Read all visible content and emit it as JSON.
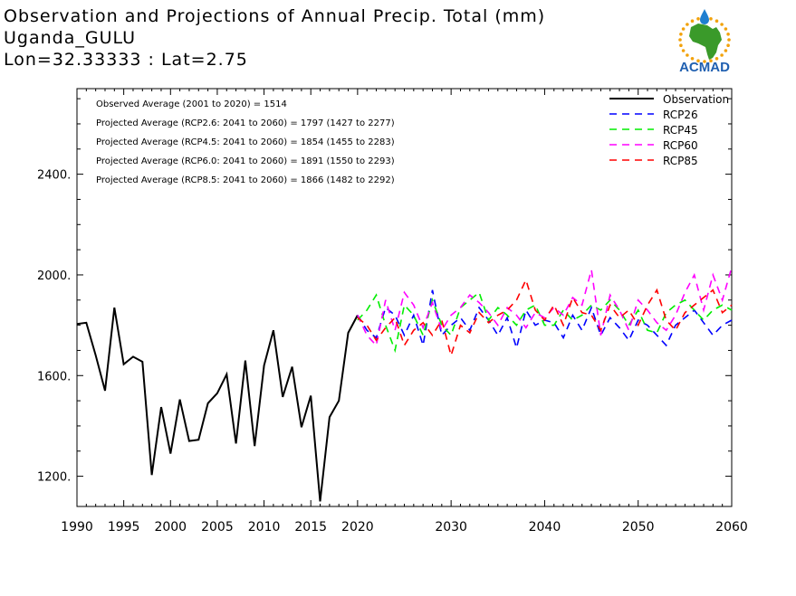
{
  "header": {
    "title": "Observation and Projections of Annual Precip. Total (mm)",
    "location": "Uganda_GULU",
    "coords": "Lon=32.33333 : Lat=2.75"
  },
  "logo": {
    "text": "ACMAD",
    "icon": "africa-sun-drop-icon",
    "colors": {
      "africa": "#3a9a2a",
      "sun": "#f2a20c",
      "drop": "#1f7fd0",
      "text": "#1f5fb0"
    }
  },
  "chart_data": {
    "type": "line",
    "xlim": [
      1990,
      2060
    ],
    "ylim": [
      1080,
      2740
    ],
    "x_ticks": [
      1990,
      1995,
      2000,
      2005,
      2010,
      2015,
      2020,
      2030,
      2040,
      2050,
      2060
    ],
    "y_ticks": [
      1200,
      1600,
      2000,
      2400
    ],
    "y_tick_labels": [
      "1200.",
      "1600.",
      "2000.",
      "2400."
    ],
    "annotations": [
      "Observed Average (2001 to 2020) = 1514",
      "Projected Average (RCP2.6: 2041 to 2060) = 1797 (1427 to 2277)",
      "Projected Average (RCP4.5: 2041 to 2060) = 1854 (1455 to 2283)",
      "Projected Average (RCP6.0: 2041 to 2060) = 1891 (1550 to 2293)",
      "Projected Average (RCP8.5: 2041 to 2060) = 1866 (1482 to 2292)"
    ],
    "legend_position": "top-right",
    "series": [
      {
        "name": "Observation",
        "color": "#000000",
        "dash": false,
        "x": [
          1990,
          1991,
          1992,
          1993,
          1994,
          1995,
          1996,
          1997,
          1998,
          1999,
          2000,
          2001,
          2002,
          2003,
          2004,
          2005,
          2006,
          2007,
          2008,
          2009,
          2010,
          2011,
          2012,
          2013,
          2014,
          2015,
          2016,
          2017,
          2018,
          2019,
          2020
        ],
        "y": [
          1805,
          1810,
          1680,
          1540,
          1870,
          1645,
          1675,
          1655,
          1205,
          1475,
          1290,
          1505,
          1340,
          1345,
          1490,
          1530,
          1605,
          1330,
          1660,
          1320,
          1640,
          1780,
          1515,
          1635,
          1395,
          1520,
          1100,
          1435,
          1500,
          1770,
          1840
        ]
      },
      {
        "name": "RCP26",
        "color": "#0000ff",
        "dash": true,
        "x": [
          2020,
          2021,
          2022,
          2023,
          2024,
          2025,
          2026,
          2027,
          2028,
          2029,
          2030,
          2031,
          2032,
          2033,
          2034,
          2035,
          2036,
          2037,
          2038,
          2039,
          2040,
          2041,
          2042,
          2043,
          2044,
          2045,
          2046,
          2047,
          2048,
          2049,
          2050,
          2051,
          2052,
          2053,
          2054,
          2055,
          2056,
          2057,
          2058,
          2059,
          2060
        ],
        "y": [
          1840,
          1780,
          1750,
          1870,
          1840,
          1760,
          1840,
          1720,
          1940,
          1760,
          1800,
          1830,
          1780,
          1870,
          1820,
          1760,
          1830,
          1710,
          1860,
          1800,
          1820,
          1810,
          1750,
          1840,
          1780,
          1870,
          1760,
          1830,
          1790,
          1740,
          1820,
          1800,
          1760,
          1720,
          1800,
          1830,
          1860,
          1810,
          1760,
          1800,
          1820
        ]
      },
      {
        "name": "RCP45",
        "color": "#00ee00",
        "dash": true,
        "x": [
          2020,
          2021,
          2022,
          2023,
          2024,
          2025,
          2026,
          2027,
          2028,
          2029,
          2030,
          2031,
          2032,
          2033,
          2034,
          2035,
          2036,
          2037,
          2038,
          2039,
          2040,
          2041,
          2042,
          2043,
          2044,
          2045,
          2046,
          2047,
          2048,
          2049,
          2050,
          2051,
          2052,
          2053,
          2054,
          2055,
          2056,
          2057,
          2058,
          2059,
          2060
        ],
        "y": [
          1820,
          1860,
          1920,
          1800,
          1700,
          1880,
          1840,
          1760,
          1900,
          1800,
          1760,
          1870,
          1900,
          1930,
          1820,
          1870,
          1840,
          1800,
          1860,
          1880,
          1800,
          1800,
          1860,
          1820,
          1840,
          1880,
          1860,
          1900,
          1860,
          1800,
          1860,
          1780,
          1770,
          1850,
          1880,
          1900,
          1860,
          1820,
          1860,
          1880,
          1860
        ]
      },
      {
        "name": "RCP60",
        "color": "#ff00ff",
        "dash": true,
        "x": [
          2020,
          2021,
          2022,
          2023,
          2024,
          2025,
          2026,
          2027,
          2028,
          2029,
          2030,
          2031,
          2032,
          2033,
          2034,
          2035,
          2036,
          2037,
          2038,
          2039,
          2040,
          2041,
          2042,
          2043,
          2044,
          2045,
          2046,
          2047,
          2048,
          2049,
          2050,
          2051,
          2052,
          2053,
          2054,
          2055,
          2056,
          2057,
          2058,
          2059,
          2060
        ],
        "y": [
          1840,
          1760,
          1720,
          1900,
          1780,
          1930,
          1880,
          1790,
          1890,
          1780,
          1840,
          1870,
          1920,
          1890,
          1850,
          1800,
          1870,
          1840,
          1790,
          1850,
          1830,
          1870,
          1840,
          1910,
          1880,
          2020,
          1760,
          1920,
          1860,
          1780,
          1900,
          1860,
          1810,
          1780,
          1840,
          1930,
          2000,
          1860,
          2000,
          1900,
          2030
        ]
      },
      {
        "name": "RCP85",
        "color": "#ff0000",
        "dash": true,
        "x": [
          2020,
          2021,
          2022,
          2023,
          2024,
          2025,
          2026,
          2027,
          2028,
          2029,
          2030,
          2031,
          2032,
          2033,
          2034,
          2035,
          2036,
          2037,
          2038,
          2039,
          2040,
          2041,
          2042,
          2043,
          2044,
          2045,
          2046,
          2047,
          2048,
          2049,
          2050,
          2051,
          2052,
          2053,
          2054,
          2055,
          2056,
          2057,
          2058,
          2059,
          2060
        ],
        "y": [
          1830,
          1800,
          1740,
          1790,
          1830,
          1720,
          1780,
          1810,
          1760,
          1820,
          1680,
          1800,
          1770,
          1850,
          1810,
          1840,
          1860,
          1900,
          1980,
          1860,
          1820,
          1880,
          1800,
          1910,
          1850,
          1840,
          1780,
          1880,
          1830,
          1860,
          1800,
          1880,
          1940,
          1820,
          1780,
          1850,
          1880,
          1910,
          1940,
          1850,
          1880
        ]
      }
    ]
  }
}
